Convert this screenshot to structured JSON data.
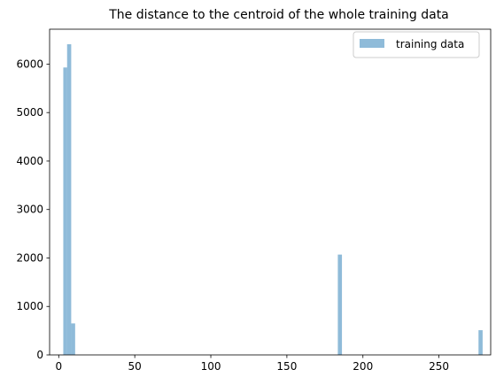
{
  "chart_data": {
    "type": "bar",
    "title": "The distance to the centroid of the whole training data",
    "xlabel": "",
    "ylabel": "",
    "xlim": [
      -6,
      284
    ],
    "ylim": [
      0,
      6720
    ],
    "xticks": [
      0,
      50,
      100,
      150,
      200,
      250
    ],
    "yticks": [
      0,
      1000,
      2000,
      3000,
      4000,
      5000,
      6000
    ],
    "grid": false,
    "legend_position": "top-right",
    "bar_color": "#1f77b4",
    "bar_opacity": 0.5,
    "series": [
      {
        "name": "training data",
        "bins": [
          {
            "x0": 3.0,
            "x1": 5.5,
            "value": 5930
          },
          {
            "x0": 5.5,
            "x1": 8.2,
            "value": 6410
          },
          {
            "x0": 8.2,
            "x1": 10.8,
            "value": 650
          },
          {
            "x0": 183.5,
            "x1": 186.2,
            "value": 2070
          },
          {
            "x0": 276.0,
            "x1": 278.7,
            "value": 510
          }
        ]
      }
    ]
  }
}
